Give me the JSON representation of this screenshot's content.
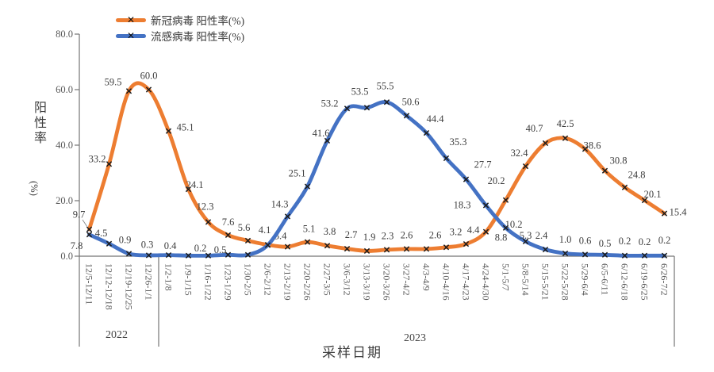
{
  "chart_data": {
    "type": "line",
    "title": "",
    "x_axis_title": "采样日期",
    "y_axis_title": "阳性率(%)",
    "y_axis_title_chars": "阳性率",
    "y_axis_title_unit": "(%)",
    "ylim": [
      0,
      80
    ],
    "ytick_labels": [
      "0.0",
      "20.0",
      "40.0",
      "60.0",
      "80.0"
    ],
    "grid": false,
    "legend_position": "top-left",
    "line_style": "smoothed",
    "marker": "x",
    "year_groups": [
      {
        "label": "2022",
        "from_category": "12/5-12/11",
        "to_category": "12/26-1/1"
      },
      {
        "label": "2023",
        "from_category": "1/2-1/8",
        "to_category": "6/26-7/2"
      }
    ],
    "categories": [
      "12/5-12/11",
      "12/12-12/18",
      "12/19-12/25",
      "12/26-1/1",
      "1/2-1/8",
      "1/9-1/15",
      "1/16-1/22",
      "1/23-1/29",
      "1/30-2/5",
      "2/6-2/12",
      "2/13-2/19",
      "2/20-2/26",
      "2/27-3/5",
      "3/6-3/12",
      "3/13-3/19",
      "3/20-3/26",
      "3/27-4/2",
      "4/3-4/9",
      "4/10-4/16",
      "4/17-4/23",
      "4/24-4/30",
      "5/1-5/7",
      "5/8-5/14",
      "5/15-5/21",
      "5/22-5/28",
      "5/29-6/4",
      "6/5-6/11",
      "6/12-6/18",
      "6/19-6/25",
      "6/26-7/2"
    ],
    "series": [
      {
        "name": "新冠病毒 阳性率(%)",
        "color": "#ED7D31",
        "values": [
          9.7,
          33.2,
          59.5,
          60.0,
          45.1,
          24.1,
          12.3,
          7.6,
          5.6,
          4.1,
          3.4,
          5.1,
          3.8,
          2.7,
          1.9,
          2.3,
          2.6,
          2.6,
          3.2,
          4.4,
          8.8,
          20.2,
          32.4,
          40.7,
          42.5,
          38.6,
          30.8,
          24.8,
          20.1,
          15.4
        ],
        "labels": [
          "9.7",
          "33.2",
          "59.5",
          "60.0",
          "45.1",
          "24.1",
          "12.3",
          "7.6",
          "5.6",
          "4.1",
          "3.4",
          "5.1",
          "3.8",
          "2.7",
          "1.9",
          "2.3",
          "2.6",
          "2.6",
          "3.2",
          "4.4",
          "8.8",
          "20.2",
          "32.4",
          "40.7",
          "42.5",
          "38.6",
          "30.8",
          "24.8",
          "20.1",
          "15.4"
        ]
      },
      {
        "name": "流感病毒 阳性率(%)",
        "color": "#4472C4",
        "values": [
          7.8,
          4.5,
          0.9,
          0.3,
          0.4,
          0.2,
          0.2,
          0.5,
          0.5,
          4.0,
          14.3,
          25.1,
          41.6,
          53.2,
          53.5,
          55.5,
          50.6,
          44.4,
          35.3,
          27.7,
          18.3,
          10.2,
          5.3,
          2.4,
          1.0,
          0.6,
          0.5,
          0.2,
          0.2,
          0.2
        ],
        "labels": [
          "7.8",
          "4.5",
          "0.9",
          "0.3",
          "0.4",
          "",
          "0.2",
          "0.5",
          "",
          "",
          "14.3",
          "25.1",
          "41.6",
          "53.2",
          "53.5",
          "55.5",
          "50.6",
          "44.4",
          "35.3",
          "27.7",
          "18.3",
          "10.2",
          "5.3",
          "2.4",
          "1.0",
          "0.6",
          "0.5",
          "0.2",
          "0.2",
          "0.2"
        ]
      }
    ],
    "style_colors": {
      "marker": "#1c1c1c",
      "axis_line": "#757575",
      "tick_text": "#595959",
      "data_label_text": "#3d3d3d"
    }
  }
}
